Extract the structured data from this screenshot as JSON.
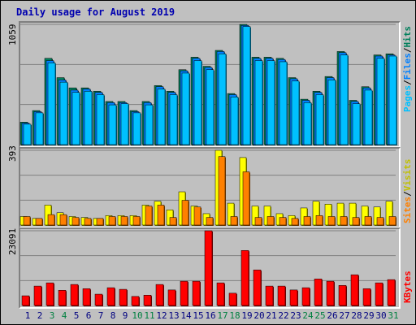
{
  "title": "Daily usage for August 2019",
  "colors": {
    "hits": "#00805c",
    "files": "#0080ff",
    "pages": "#00c0ff",
    "visits": "#ffff00",
    "sites": "#ff8000",
    "kbytes": "#ff0000",
    "weekend_day": "#008040",
    "weekday_day": "#000080"
  },
  "panel_labels": {
    "top": {
      "pages": "Pages",
      "files": "Files",
      "hits": "Hits",
      "sep": "/"
    },
    "middle": {
      "sites": "Sites",
      "visits": "Visits",
      "sep": "/"
    },
    "bottom": {
      "kbytes": "KBytes"
    }
  },
  "chart_data": [
    {
      "type": "bar",
      "title": "Daily usage for August 2019",
      "ymax_label": "1059",
      "ylim": [
        0,
        1059
      ],
      "categories": [
        "1",
        "2",
        "3",
        "4",
        "5",
        "6",
        "7",
        "8",
        "9",
        "10",
        "11",
        "12",
        "13",
        "14",
        "15",
        "16",
        "17",
        "18",
        "19",
        "20",
        "21",
        "22",
        "23",
        "24",
        "25",
        "26",
        "27",
        "28",
        "29",
        "30",
        "31"
      ],
      "series": [
        {
          "name": "Hits",
          "values": [
            198,
            300,
            760,
            590,
            500,
            500,
            470,
            380,
            380,
            300,
            380,
            520,
            470,
            660,
            770,
            690,
            830,
            450,
            1059,
            770,
            770,
            760,
            590,
            400,
            470,
            600,
            820,
            390,
            510,
            790,
            800
          ]
        },
        {
          "name": "Files",
          "values": [
            190,
            290,
            740,
            570,
            480,
            490,
            460,
            370,
            370,
            290,
            370,
            510,
            460,
            650,
            760,
            680,
            820,
            440,
            1050,
            760,
            760,
            750,
            580,
            390,
            460,
            590,
            810,
            380,
            500,
            780,
            790
          ]
        },
        {
          "name": "Pages",
          "values": [
            180,
            280,
            720,
            550,
            460,
            470,
            440,
            350,
            360,
            280,
            350,
            490,
            440,
            630,
            740,
            660,
            800,
            420,
            1040,
            740,
            740,
            730,
            560,
            370,
            440,
            570,
            790,
            360,
            480,
            760,
            780
          ]
        }
      ]
    },
    {
      "type": "bar",
      "ymax_label": "393",
      "ylim": [
        0,
        393
      ],
      "categories": [
        "1",
        "2",
        "3",
        "4",
        "5",
        "6",
        "7",
        "8",
        "9",
        "10",
        "11",
        "12",
        "13",
        "14",
        "15",
        "16",
        "17",
        "18",
        "19",
        "20",
        "21",
        "22",
        "23",
        "24",
        "25",
        "26",
        "27",
        "28",
        "29",
        "30",
        "31"
      ],
      "series": [
        {
          "name": "Visits",
          "values": [
            45,
            35,
            105,
            65,
            45,
            40,
            35,
            50,
            50,
            50,
            105,
            125,
            80,
            175,
            100,
            60,
            393,
            115,
            355,
            100,
            100,
            60,
            50,
            90,
            125,
            110,
            115,
            115,
            100,
            95,
            125
          ]
        },
        {
          "name": "Sites",
          "values": [
            45,
            35,
            55,
            55,
            40,
            35,
            35,
            45,
            45,
            45,
            100,
            105,
            40,
            130,
            95,
            40,
            360,
            45,
            280,
            40,
            45,
            40,
            35,
            45,
            50,
            45,
            45,
            40,
            45,
            40,
            45
          ]
        }
      ]
    },
    {
      "type": "bar",
      "ymax_label": "23091",
      "ylim": [
        0,
        23091
      ],
      "categories": [
        "1",
        "2",
        "3",
        "4",
        "5",
        "6",
        "7",
        "8",
        "9",
        "10",
        "11",
        "12",
        "13",
        "14",
        "15",
        "16",
        "17",
        "18",
        "19",
        "20",
        "21",
        "22",
        "23",
        "24",
        "25",
        "26",
        "27",
        "28",
        "29",
        "30",
        "31"
      ],
      "series": [
        {
          "name": "KBytes",
          "values": [
            3000,
            6000,
            7000,
            4700,
            6500,
            5200,
            3500,
            5500,
            5000,
            2800,
            3200,
            6500,
            4800,
            7500,
            7500,
            23091,
            7000,
            3800,
            17000,
            11000,
            6000,
            6000,
            4800,
            5500,
            8200,
            7500,
            6200,
            9500,
            5200,
            7000,
            8000
          ]
        }
      ]
    }
  ],
  "weekend_days": [
    3,
    4,
    10,
    11,
    17,
    18,
    24,
    25,
    31
  ]
}
